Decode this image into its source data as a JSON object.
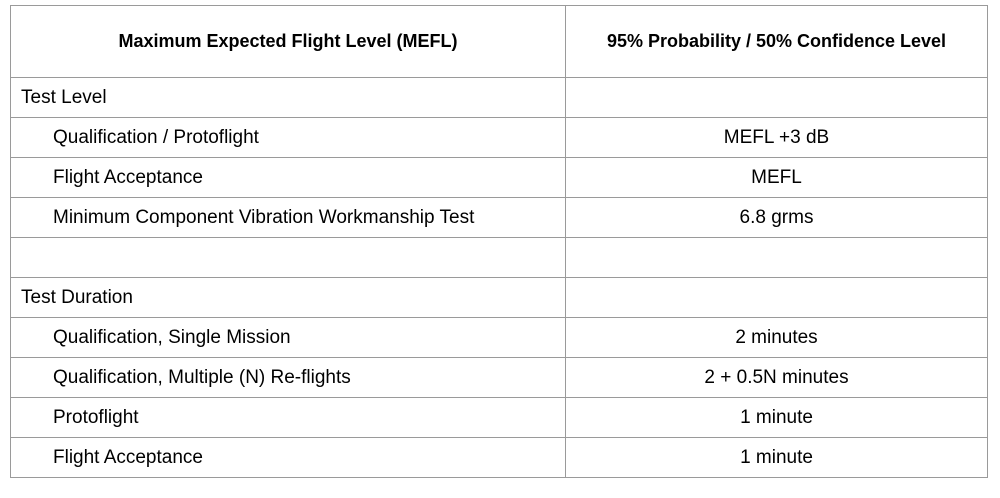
{
  "table": {
    "headers": [
      "Maximum Expected Flight Level (MEFL)",
      "95% Probability / 50% Confidence Level"
    ],
    "rows": [
      [
        "Test Level",
        null
      ],
      [
        "Qualification / Protoflight",
        "MEFL +3 dB"
      ],
      [
        "Flight Acceptance",
        "MEFL"
      ],
      [
        "Minimum Component Vibration Workmanship Test",
        "6.8 grms"
      ],
      [
        null,
        null
      ],
      [
        "Test Duration",
        null
      ],
      [
        "Qualification, Single Mission",
        "2 minutes"
      ],
      [
        "Qualification, Multiple (N) Re-flights",
        "2 + 0.5N minutes"
      ],
      [
        "Protoflight",
        "1 minute"
      ],
      [
        "Flight Acceptance",
        "1 minute"
      ]
    ]
  }
}
